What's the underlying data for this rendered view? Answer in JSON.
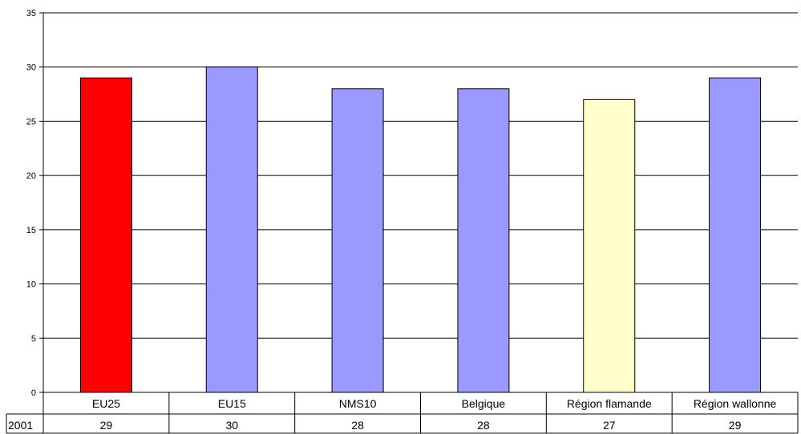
{
  "chart_data": {
    "type": "bar",
    "title": "",
    "xlabel": "",
    "ylabel": "",
    "categories": [
      "EU25",
      "EU15",
      "NMS10",
      "Belgique",
      "Région flamande",
      "Région wallonne"
    ],
    "series": [
      {
        "name": "2001",
        "values": [
          29,
          30,
          28,
          28,
          27,
          29
        ]
      }
    ],
    "value_labels": [
      "29",
      "30",
      "28",
      "28",
      "27",
      "29"
    ],
    "bar_colors": [
      "#ff0000",
      "#9999ff",
      "#9999ff",
      "#9999ff",
      "#ffffcc",
      "#9999ff"
    ],
    "bar_colors_note": "",
    "ylim": [
      0,
      35
    ],
    "yticks": [
      0,
      5,
      10,
      15,
      20,
      25,
      30,
      35
    ],
    "ytick_labels": [
      "0",
      "5",
      "10",
      "15",
      "20",
      "25",
      "30",
      "35"
    ],
    "grid": true,
    "legend": "data-table"
  }
}
